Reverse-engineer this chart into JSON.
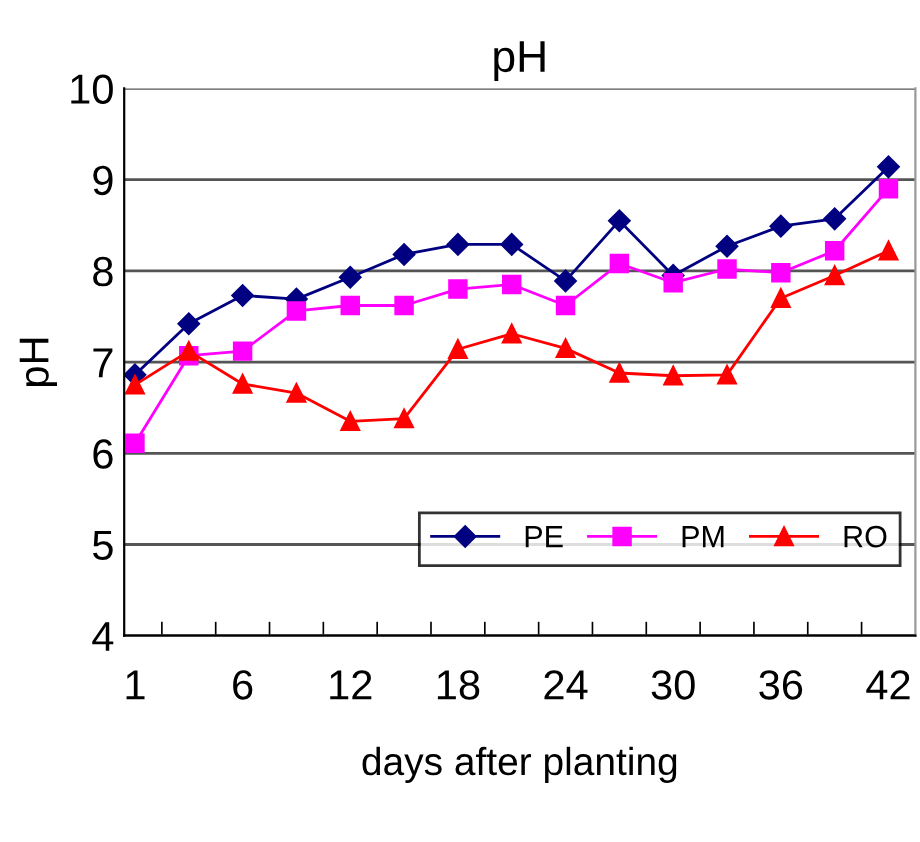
{
  "chart_data": {
    "type": "line",
    "title": "pH",
    "xlabel": "days after planting",
    "ylabel": "pH",
    "categories": [
      "1",
      null,
      "6",
      null,
      "12",
      null,
      "18",
      null,
      "24",
      null,
      "30",
      null,
      "36",
      null,
      "42"
    ],
    "series": [
      {
        "name": "PE",
        "color": "#000080",
        "marker": "diamond",
        "values": [
          6.86,
          7.42,
          7.73,
          7.69,
          7.93,
          8.18,
          8.29,
          8.29,
          7.89,
          8.55,
          7.95,
          8.27,
          8.49,
          8.57,
          9.14
        ]
      },
      {
        "name": "PM",
        "color": "#ff00ff",
        "marker": "square",
        "values": [
          6.11,
          7.07,
          7.12,
          7.56,
          7.62,
          7.62,
          7.8,
          7.85,
          7.62,
          8.08,
          7.87,
          8.02,
          7.98,
          8.22,
          8.9
        ]
      },
      {
        "name": "RO",
        "color": "#ff0000",
        "marker": "triangle",
        "values": [
          6.75,
          7.12,
          6.76,
          6.66,
          6.35,
          6.38,
          7.14,
          7.31,
          7.15,
          6.88,
          6.85,
          6.86,
          7.7,
          7.95,
          8.22
        ]
      }
    ],
    "ylim": [
      4,
      10
    ],
    "yticks": [
      4,
      5,
      6,
      7,
      8,
      9,
      10
    ],
    "grid": "y",
    "legend": "bottom right",
    "line_style": "solid"
  }
}
